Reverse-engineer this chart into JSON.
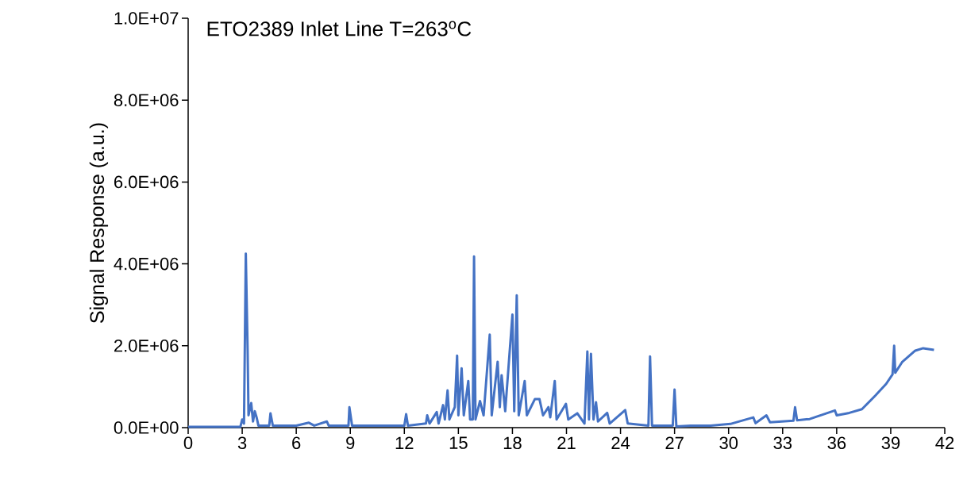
{
  "chart_data": {
    "type": "line",
    "title": "ETO2389  Inlet Line T=263$^{o}$C",
    "ylabel": "Signal Response (a.u.)",
    "xlim": [
      0,
      42
    ],
    "xticks": [
      0,
      3,
      6,
      9,
      12,
      15,
      18,
      21,
      24,
      27,
      30,
      33,
      36,
      39,
      42
    ],
    "ylim": [
      0,
      10000000
    ],
    "yticks": [
      {
        "value": 0,
        "label": "0.0E+00"
      },
      {
        "value": 2000000,
        "label": "2.0E+06"
      },
      {
        "value": 4000000,
        "label": "4.0E+06"
      },
      {
        "value": 6000000,
        "label": "6.0E+06"
      },
      {
        "value": 8000000,
        "label": "8.0E+06"
      },
      {
        "value": 10000000,
        "label": "1.0E+07"
      }
    ],
    "line_style": "solid",
    "series": [
      {
        "color": "#4472c4",
        "x": [
          0,
          0.5,
          2.9,
          3.0,
          3.1,
          3.2,
          3.3,
          3.35,
          3.5,
          3.6,
          3.7,
          3.8,
          3.9,
          4.5,
          4.57,
          4.7,
          6.0,
          6.7,
          7.0,
          7.7,
          7.8,
          8.9,
          8.95,
          9.1,
          12.0,
          12.1,
          12.2,
          13.2,
          13.27,
          13.4,
          13.8,
          13.9,
          14.15,
          14.25,
          14.4,
          14.5,
          14.8,
          14.93,
          15.0,
          15.18,
          15.3,
          15.55,
          15.65,
          15.8,
          15.87,
          15.95,
          16.2,
          16.4,
          16.74,
          16.85,
          17.18,
          17.3,
          17.4,
          17.6,
          18.0,
          18.1,
          18.24,
          18.35,
          18.68,
          18.8,
          19.25,
          19.5,
          19.7,
          20.0,
          20.1,
          20.35,
          20.45,
          20.97,
          21.1,
          21.6,
          22.0,
          22.16,
          22.25,
          22.36,
          22.5,
          22.64,
          22.75,
          23.26,
          23.4,
          24.26,
          24.4,
          25.55,
          25.64,
          25.75,
          26.9,
          27.0,
          27.1,
          27.9,
          29.0,
          30.1,
          31.37,
          31.5,
          32.1,
          32.3,
          33.6,
          33.69,
          33.8,
          34.5,
          35.9,
          36.0,
          36.7,
          37.4,
          38.16,
          38.75,
          39.1,
          39.19,
          39.25,
          39.63,
          40.36,
          40.8,
          41.4
        ],
        "values": [
          20000,
          20000,
          20000,
          200000,
          100000,
          4250000,
          1900000,
          300000,
          600000,
          150000,
          400000,
          250000,
          50000,
          50000,
          350000,
          50000,
          50000,
          120000,
          50000,
          150000,
          50000,
          50000,
          500000,
          50000,
          50000,
          330000,
          50000,
          100000,
          300000,
          100000,
          380000,
          100000,
          550000,
          200000,
          910000,
          200000,
          500000,
          1760000,
          300000,
          1450000,
          300000,
          1140000,
          200000,
          200000,
          4180000,
          200000,
          650000,
          300000,
          2270000,
          300000,
          1610000,
          500000,
          1280000,
          400000,
          2760000,
          400000,
          3230000,
          300000,
          1140000,
          300000,
          700000,
          700000,
          300000,
          500000,
          250000,
          1140000,
          200000,
          580000,
          200000,
          350000,
          100000,
          1860000,
          200000,
          1800000,
          200000,
          620000,
          150000,
          360000,
          100000,
          430000,
          100000,
          50000,
          1740000,
          50000,
          50000,
          930000,
          30000,
          50000,
          50000,
          90000,
          250000,
          110000,
          300000,
          130000,
          170000,
          500000,
          180000,
          210000,
          420000,
          300000,
          360000,
          450000,
          790000,
          1070000,
          1300000,
          2000000,
          1340000,
          1600000,
          1880000,
          1940000,
          1900000
        ]
      }
    ]
  }
}
